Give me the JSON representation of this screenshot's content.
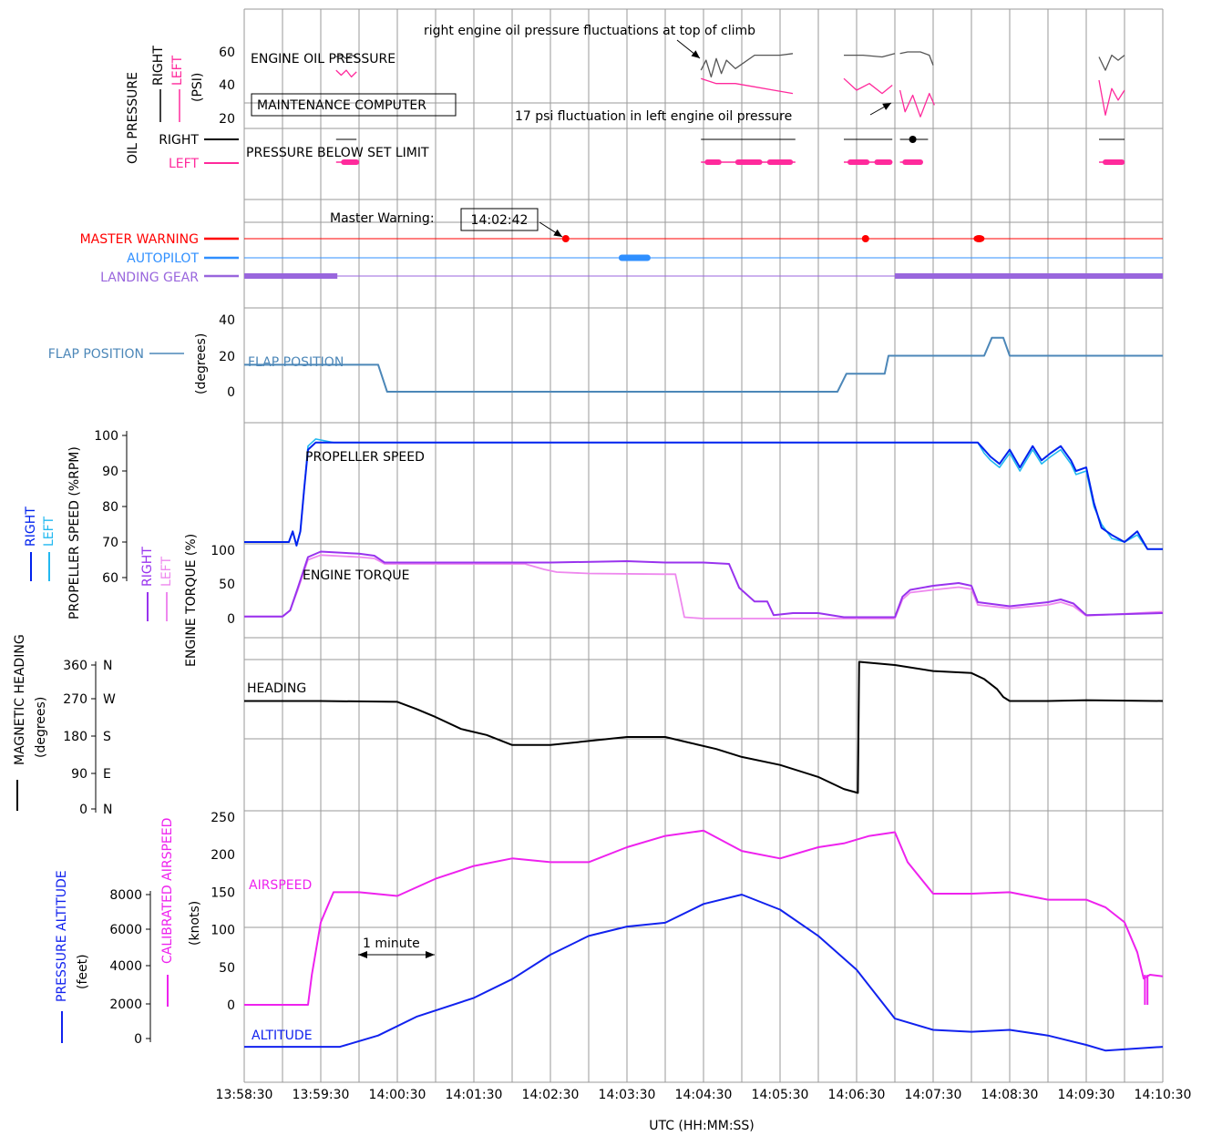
{
  "colors": {
    "black": "#000000",
    "pink": "#ff2a9c",
    "gray": "#555555",
    "red": "#ff0000",
    "autopilot": "#2f8fff",
    "gear": "#9966dd",
    "flap": "#4c87b8",
    "blue": "#0022ee",
    "cyan": "#22b8f0",
    "purple": "#9933ee",
    "lightPurple": "#ee88ee",
    "magenta": "#ee22ee",
    "altitude": "#1122ee",
    "grid": "#9a9a9a"
  },
  "chart_data": {
    "type": "line",
    "x_label": "UTC (HH:MM:SS)",
    "x_ticks": [
      "13:58:30",
      "13:59:30",
      "14:00:30",
      "14:01:30",
      "14:02:30",
      "14:03:30",
      "14:04:30",
      "14:05:30",
      "14:06:30",
      "14:07:30",
      "14:08:30",
      "14:09:30",
      "14:10:30"
    ],
    "grid": true,
    "oil_pressure": {
      "title": "ENGINE OIL PRESSURE",
      "axis_label": "OIL PRESSURE",
      "unit": "(PSI)",
      "legend": [
        "RIGHT",
        "LEFT"
      ],
      "ticks": [
        "60",
        "40",
        "20"
      ],
      "box_label": "MAINTENANCE COMPUTER",
      "annotation_top": "right engine oil pressure fluctuations at top of climb",
      "annotation_bottom": "17 psi fluctuation in left engine oil pressure",
      "right_segments": [
        {
          "x": [
            "13:59:42",
            "13:59:46",
            "13:59:50",
            "13:59:54",
            "13:59:58"
          ],
          "y": [
            57,
            58,
            56,
            58,
            57
          ]
        },
        {
          "x": [
            "14:04:28",
            "14:04:32",
            "14:04:36",
            "14:04:40",
            "14:04:44",
            "14:04:48",
            "14:04:55",
            "14:05:10",
            "14:05:30",
            "14:05:40"
          ],
          "y": [
            49,
            55,
            45,
            56,
            47,
            55,
            50,
            58,
            58,
            59
          ]
        },
        {
          "x": [
            "14:06:20",
            "14:06:35",
            "14:06:50",
            "14:07:00"
          ],
          "y": [
            58,
            58,
            57,
            59
          ]
        },
        {
          "x": [
            "14:07:04",
            "14:07:10",
            "14:07:20",
            "14:07:27",
            "14:07:30"
          ],
          "y": [
            59,
            60,
            60,
            58,
            52
          ]
        },
        {
          "x": [
            "14:09:40",
            "14:09:45",
            "14:09:50",
            "14:09:55",
            "14:10:00"
          ],
          "y": [
            57,
            49,
            58,
            55,
            58
          ]
        }
      ],
      "left_segments": [
        {
          "x": [
            "13:59:42",
            "13:59:46",
            "13:59:50",
            "13:59:54",
            "13:59:58"
          ],
          "y": [
            49,
            46,
            49,
            45,
            48
          ]
        },
        {
          "x": [
            "14:04:28",
            "14:04:40",
            "14:04:55",
            "14:05:10",
            "14:05:25",
            "14:05:40"
          ],
          "y": [
            44,
            41,
            41,
            39,
            37,
            35
          ]
        },
        {
          "x": [
            "14:06:20",
            "14:06:30",
            "14:06:40",
            "14:06:50",
            "14:06:58"
          ],
          "y": [
            44,
            37,
            41,
            35,
            40
          ]
        },
        {
          "x": [
            "14:07:04",
            "14:07:08",
            "14:07:14",
            "14:07:20",
            "14:07:27",
            "14:07:31"
          ],
          "y": [
            37,
            24,
            34,
            21,
            35,
            28
          ]
        },
        {
          "x": [
            "14:09:40",
            "14:09:45",
            "14:09:50",
            "14:09:55",
            "14:10:00"
          ],
          "y": [
            43,
            22,
            38,
            31,
            37
          ]
        }
      ]
    },
    "pressure_below_limit": {
      "label": "PRESSURE BELOW SET LIMIT",
      "right_label": "RIGHT",
      "left_label": "LEFT",
      "right_flags": [
        [
          "13:59:42",
          "13:59:58"
        ],
        [
          "14:04:28",
          "14:05:42"
        ],
        [
          "14:06:20",
          "14:06:58"
        ],
        [
          "14:07:04",
          "14:07:26"
        ],
        [
          "14:09:40",
          "14:10:00"
        ]
      ],
      "left_flags": [
        [
          "13:59:42",
          "13:59:58"
        ],
        [
          "14:04:28",
          "14:05:42"
        ],
        [
          "14:06:20",
          "14:06:58"
        ],
        [
          "14:07:04",
          "14:07:20"
        ],
        [
          "14:09:40",
          "14:10:00"
        ]
      ],
      "right_dots": [
        "14:07:14"
      ]
    },
    "master_warning": {
      "label": "MASTER WARNING",
      "annotation": "Master Warning:",
      "time_box": "14:02:42",
      "events": [
        "14:02:42",
        "14:06:37",
        "14:08:06"
      ]
    },
    "autopilot": {
      "label": "AUTOPILOT",
      "engaged": [
        [
          "14:03:26",
          "14:03:46"
        ]
      ]
    },
    "landing_gear": {
      "label": "LANDING GEAR",
      "down": [
        [
          "13:58:30",
          "13:59:43"
        ],
        [
          "14:07:00",
          "14:10:30"
        ]
      ]
    },
    "flap_position": {
      "label": "FLAP POSITION",
      "unit": "(degrees)",
      "ticks": [
        "40",
        "20",
        "0"
      ],
      "x": [
        "13:58:30",
        "14:00:15",
        "14:00:22",
        "14:06:15",
        "14:06:22",
        "14:06:52",
        "14:06:55",
        "14:07:18",
        "14:07:20",
        "14:08:10",
        "14:08:16",
        "14:08:25",
        "14:08:30",
        "14:10:30"
      ],
      "y": [
        15,
        15,
        0,
        0,
        10,
        10,
        20,
        20,
        20,
        20,
        30,
        30,
        20,
        20
      ]
    },
    "propeller_speed": {
      "label": "PROPELLER SPEED",
      "axis_label": "PROPELLER SPEED (%RPM)",
      "legend": [
        "RIGHT",
        "LEFT"
      ],
      "ticks": [
        "100",
        "90",
        "80",
        "70",
        "60"
      ],
      "right": {
        "x": [
          "13:58:30",
          "13:59:05",
          "13:59:08",
          "13:59:11",
          "13:59:14",
          "13:59:17",
          "13:59:20",
          "13:59:26",
          "13:59:40",
          "14:00:30",
          "14:01:30",
          "14:04:30",
          "14:07:30",
          "14:08:05",
          "14:08:10",
          "14:08:15",
          "14:08:22",
          "14:08:30",
          "14:08:38",
          "14:08:48",
          "14:08:55",
          "14:09:02",
          "14:09:10",
          "14:09:18",
          "14:09:22",
          "14:09:30",
          "14:09:36",
          "14:09:42",
          "14:09:50",
          "14:10:00",
          "14:10:10",
          "14:10:18",
          "14:10:22",
          "14:10:30"
        ],
        "y": [
          70,
          70,
          73,
          69,
          73,
          85,
          96,
          98,
          98,
          98,
          98,
          98,
          98,
          98,
          96,
          94,
          92,
          96,
          91,
          97,
          93,
          95,
          97,
          93,
          90,
          91,
          81,
          74,
          72,
          70,
          73,
          68,
          68,
          68
        ]
      },
      "left": {
        "x": [
          "13:58:30",
          "13:59:05",
          "13:59:08",
          "13:59:11",
          "13:59:14",
          "13:59:17",
          "13:59:20",
          "13:59:26",
          "13:59:40",
          "14:00:30",
          "14:01:30",
          "14:04:30",
          "14:07:30",
          "14:08:05",
          "14:08:10",
          "14:08:15",
          "14:08:22",
          "14:08:30",
          "14:08:38",
          "14:08:48",
          "14:08:55",
          "14:09:02",
          "14:09:10",
          "14:09:18",
          "14:09:22",
          "14:09:30",
          "14:09:36",
          "14:09:42",
          "14:09:50",
          "14:10:00",
          "14:10:10",
          "14:10:18",
          "14:10:22",
          "14:10:30"
        ],
        "y": [
          70,
          70,
          73,
          69,
          73,
          85,
          97,
          99,
          98,
          98,
          98,
          98,
          98,
          98,
          95,
          93,
          91,
          95,
          90,
          96,
          92,
          94,
          96,
          92,
          89,
          90,
          80,
          75,
          71,
          70,
          72,
          68,
          68,
          68
        ]
      }
    },
    "engine_torque": {
      "label": "ENGINE TORQUE",
      "axis_label": "ENGINE TORQUE (%)",
      "legend": [
        "RIGHT",
        "LEFT"
      ],
      "ticks": [
        "100",
        "50",
        "0"
      ],
      "right": {
        "x": [
          "13:58:30",
          "13:59:00",
          "13:59:06",
          "13:59:12",
          "13:59:20",
          "13:59:30",
          "14:00:00",
          "14:00:12",
          "14:00:20",
          "14:00:30",
          "14:01:30",
          "14:02:30",
          "14:03:30",
          "14:04:00",
          "14:04:30",
          "14:04:50",
          "14:04:58",
          "14:05:10",
          "14:05:20",
          "14:05:25",
          "14:05:40",
          "14:06:00",
          "14:06:20",
          "14:06:40",
          "14:07:00",
          "14:07:06",
          "14:07:12",
          "14:07:30",
          "14:07:50",
          "14:08:00",
          "14:08:05",
          "14:08:30",
          "14:09:00",
          "14:09:10",
          "14:09:20",
          "14:09:30",
          "14:10:30"
        ],
        "y": [
          3,
          3,
          12,
          45,
          90,
          98,
          95,
          92,
          82,
          82,
          82,
          82,
          84,
          82,
          82,
          80,
          45,
          25,
          25,
          5,
          8,
          8,
          2,
          2,
          2,
          32,
          42,
          48,
          52,
          48,
          24,
          18,
          24,
          28,
          22,
          5,
          8
        ]
      },
      "left": {
        "x": [
          "13:58:30",
          "13:59:00",
          "13:59:06",
          "13:59:12",
          "13:59:20",
          "13:59:30",
          "14:00:00",
          "14:00:12",
          "14:00:20",
          "14:00:30",
          "14:01:30",
          "14:02:10",
          "14:02:25",
          "14:02:35",
          "14:03:00",
          "14:04:00",
          "14:04:08",
          "14:04:15",
          "14:04:30",
          "14:06:20",
          "14:06:40",
          "14:07:00",
          "14:07:06",
          "14:07:12",
          "14:07:30",
          "14:07:50",
          "14:08:00",
          "14:08:05",
          "14:08:30",
          "14:09:00",
          "14:09:10",
          "14:09:20",
          "14:09:30",
          "14:10:30"
        ],
        "y": [
          3,
          3,
          12,
          42,
          86,
          93,
          90,
          88,
          80,
          80,
          80,
          80,
          72,
          68,
          66,
          65,
          65,
          2,
          0,
          0,
          0,
          0,
          28,
          38,
          42,
          46,
          43,
          20,
          15,
          20,
          24,
          18,
          4,
          10
        ]
      }
    },
    "heading": {
      "label": "HEADING",
      "axis_label": "MAGNETIC HEADING",
      "unit": "(degrees)",
      "ticks": [
        "360",
        "270",
        "180",
        "90",
        "0"
      ],
      "cardinals": [
        "N",
        "W",
        "S",
        "E",
        "N"
      ],
      "x": [
        "13:58:30",
        "13:59:30",
        "14:00:30",
        "14:00:45",
        "14:01:00",
        "14:01:20",
        "14:01:40",
        "14:02:00",
        "14:02:30",
        "14:03:00",
        "14:03:30",
        "14:04:00",
        "14:04:20",
        "14:04:40",
        "14:05:00",
        "14:05:30",
        "14:06:00",
        "14:06:20",
        "14:06:31",
        "14:06:32",
        "14:07:00",
        "14:07:30",
        "14:08:00",
        "14:08:10",
        "14:08:20",
        "14:08:25",
        "14:08:30",
        "14:09:00",
        "14:09:30",
        "14:10:30"
      ],
      "y": [
        270,
        270,
        268,
        250,
        230,
        200,
        185,
        160,
        160,
        170,
        180,
        180,
        165,
        150,
        130,
        110,
        80,
        50,
        40,
        368,
        360,
        345,
        340,
        325,
        300,
        280,
        270,
        270,
        272,
        270
      ]
    },
    "airspeed": {
      "label": "AIRSPEED",
      "axis_label": "CALIBRATED AIRSPEED",
      "unit": "(knots)",
      "ticks": [
        "250",
        "200",
        "150",
        "100",
        "50",
        "0"
      ],
      "x": [
        "13:58:30",
        "13:59:20",
        "13:59:23",
        "13:59:30",
        "13:59:40",
        "14:00:00",
        "14:00:30",
        "14:01:00",
        "14:01:30",
        "14:02:00",
        "14:02:30",
        "14:03:00",
        "14:03:30",
        "14:04:00",
        "14:04:30",
        "14:05:00",
        "14:05:30",
        "14:06:00",
        "14:06:20",
        "14:06:40",
        "14:07:00",
        "14:07:10",
        "14:07:30",
        "14:08:00",
        "14:08:30",
        "14:09:00",
        "14:09:30",
        "14:09:45",
        "14:10:00",
        "14:10:10",
        "14:10:15",
        "14:10:20",
        "14:10:30"
      ],
      "y": [
        0,
        0,
        40,
        110,
        150,
        150,
        145,
        168,
        185,
        195,
        190,
        190,
        210,
        225,
        232,
        205,
        195,
        210,
        215,
        225,
        230,
        190,
        148,
        148,
        150,
        140,
        140,
        130,
        110,
        70,
        35,
        40,
        38
      ]
    },
    "altitude": {
      "label": "ALTITUDE",
      "axis_label": "PRESSURE ALTITUDE",
      "unit": "(feet)",
      "ticks": [
        "8000",
        "6000",
        "4000",
        "2000",
        "0"
      ],
      "x": [
        "13:58:30",
        "13:59:30",
        "13:59:45",
        "14:00:15",
        "14:00:45",
        "14:01:30",
        "14:02:00",
        "14:02:30",
        "14:03:00",
        "14:03:30",
        "14:04:00",
        "14:04:30",
        "14:05:00",
        "14:05:30",
        "14:06:00",
        "14:06:30",
        "14:07:00",
        "14:07:30",
        "14:08:00",
        "14:08:30",
        "14:09:00",
        "14:09:30",
        "14:09:45",
        "14:10:30"
      ],
      "y": [
        -100,
        -100,
        -100,
        500,
        1500,
        2500,
        3500,
        4800,
        5800,
        6300,
        6500,
        7500,
        8000,
        7200,
        5800,
        4000,
        1400,
        800,
        700,
        800,
        500,
        0,
        -300,
        -100
      ]
    },
    "scale_bar": "1 minute"
  }
}
